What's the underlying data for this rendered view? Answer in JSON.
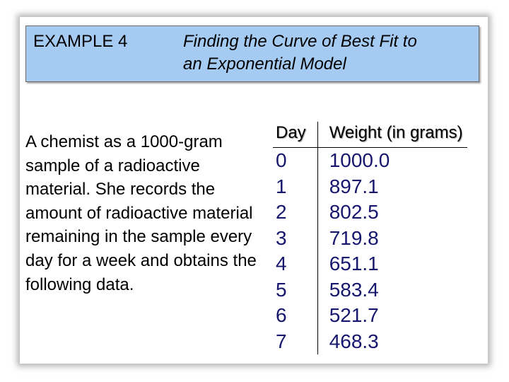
{
  "header": {
    "example_label": "EXAMPLE 4",
    "title_line1": "Finding the Curve of Best Fit to",
    "title_line2": "an Exponential Model"
  },
  "problem": {
    "text": "A chemist as a 1000-gram sample of a radioactive material.  She records the amount of radioactive material remaining in the sample every day for a week and obtains the following data."
  },
  "table": {
    "headers": [
      "Day",
      "Weight (in grams)"
    ],
    "rows": [
      [
        "0",
        "1000.0"
      ],
      [
        "1",
        "897.1"
      ],
      [
        "2",
        "802.5"
      ],
      [
        "3",
        "719.8"
      ],
      [
        "4",
        "651.1"
      ],
      [
        "5",
        "583.4"
      ],
      [
        "6",
        "521.7"
      ],
      [
        "7",
        "468.3"
      ]
    ]
  },
  "colors": {
    "title_box": "#a6cbf3",
    "table_values": "#16166e"
  }
}
